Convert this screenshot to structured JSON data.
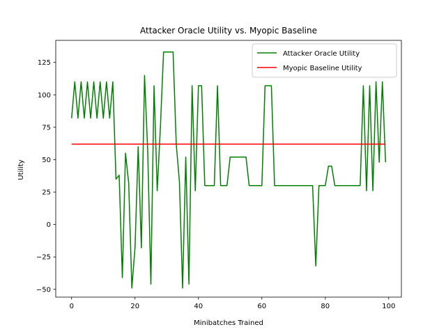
{
  "chart_data": {
    "type": "line",
    "title": "Attacker Oracle Utility vs. Myopic Baseline",
    "xlabel": "Minibatches Trained",
    "ylabel": "Utility",
    "xlim": [
      -5,
      104
    ],
    "ylim": [
      -56,
      142
    ],
    "x_ticks": [
      0,
      20,
      40,
      60,
      80,
      100
    ],
    "y_ticks": [
      -50,
      -25,
      0,
      25,
      50,
      75,
      100,
      125
    ],
    "grid": false,
    "legend_position": "top-right",
    "series": [
      {
        "name": "Attacker Oracle Utility",
        "color": "#008000",
        "x": [
          0,
          1,
          2,
          3,
          4,
          5,
          6,
          7,
          8,
          9,
          10,
          11,
          12,
          13,
          14,
          15,
          16,
          17,
          18,
          19,
          20,
          21,
          22,
          23,
          24,
          25,
          26,
          27,
          28,
          29,
          30,
          31,
          32,
          33,
          34,
          35,
          36,
          37,
          38,
          39,
          40,
          41,
          42,
          43,
          44,
          45,
          46,
          47,
          48,
          49,
          50,
          51,
          52,
          53,
          54,
          55,
          56,
          57,
          58,
          59,
          60,
          61,
          62,
          63,
          64,
          65,
          66,
          67,
          68,
          69,
          70,
          71,
          72,
          73,
          74,
          75,
          76,
          77,
          78,
          79,
          80,
          81,
          82,
          83,
          84,
          85,
          86,
          87,
          88,
          89,
          90,
          91,
          92,
          93,
          94,
          95,
          96,
          97,
          98,
          99
        ],
        "values": [
          82,
          110,
          82,
          110,
          82,
          110,
          82,
          110,
          82,
          110,
          82,
          110,
          82,
          110,
          35,
          38,
          -41,
          55,
          32,
          -49,
          -18,
          60,
          -18,
          115,
          57,
          -46,
          107,
          26,
          75,
          133,
          133,
          133,
          133,
          62,
          33,
          -49,
          52,
          -46,
          107,
          26,
          107,
          107,
          30,
          30,
          30,
          30,
          107,
          30,
          30,
          30,
          52,
          52,
          52,
          52,
          52,
          52,
          30,
          30,
          30,
          30,
          30,
          107,
          107,
          107,
          30,
          30,
          30,
          30,
          30,
          30,
          30,
          30,
          30,
          30,
          30,
          30,
          30,
          -32,
          30,
          30,
          30,
          45,
          45,
          30,
          30,
          30,
          30,
          30,
          30,
          30,
          30,
          30,
          107,
          26,
          107,
          26,
          110,
          48,
          110,
          48
        ]
      },
      {
        "name": "Myopic Baseline Utility",
        "color": "#ff0000",
        "x": [
          0,
          99
        ],
        "values": [
          62,
          62
        ]
      }
    ]
  }
}
